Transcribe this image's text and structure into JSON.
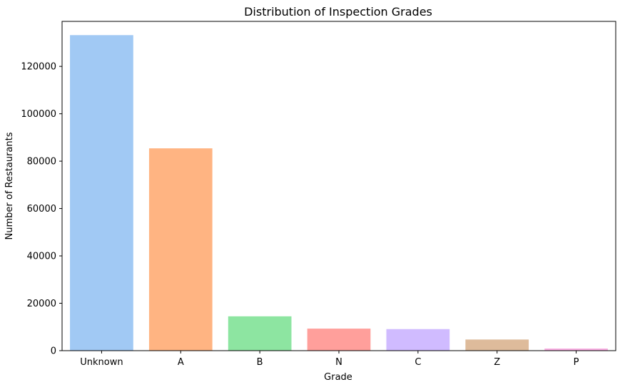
{
  "chart_data": {
    "type": "bar",
    "title": "Distribution of Inspection Grades",
    "xlabel": "Grade",
    "ylabel": "Number of Restaurants",
    "categories": [
      "Unknown",
      "A",
      "B",
      "N",
      "C",
      "Z",
      "P"
    ],
    "values": [
      133200,
      85400,
      14500,
      9300,
      9100,
      4700,
      900
    ],
    "colors": [
      "#a1c9f4",
      "#ffb482",
      "#8de5a1",
      "#ff9f9b",
      "#d0bbff",
      "#debb9b",
      "#fab0e4"
    ],
    "ylim": [
      0,
      139000
    ],
    "yticks": [
      0,
      20000,
      40000,
      60000,
      80000,
      100000,
      120000
    ],
    "grid": false,
    "legend": "none"
  }
}
